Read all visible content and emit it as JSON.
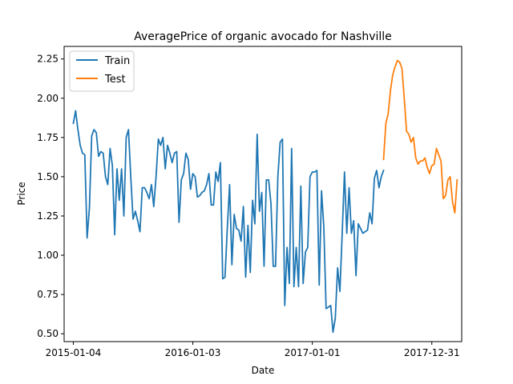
{
  "chart_data": {
    "type": "line",
    "title": "AveragePrice of organic avocado for Nashville",
    "xlabel": "Date",
    "ylabel": "Price",
    "x_ticks": [
      "2015-01-04",
      "2016-01-03",
      "2017-01-01",
      "2017-12-31"
    ],
    "y_ticks": [
      "0.50",
      "0.75",
      "1.00",
      "1.25",
      "1.50",
      "1.75",
      "2.00",
      "2.25"
    ],
    "xlim": [
      "2014-12-07",
      "2018-04-01"
    ],
    "ylim": [
      0.45,
      2.33
    ],
    "legend_position": "top-left",
    "grid": false,
    "series": [
      {
        "name": "Train",
        "color": "#1f77b4",
        "points": [
          [
            "2015-01-04",
            1.84
          ],
          [
            "2015-01-11",
            1.92
          ],
          [
            "2015-01-18",
            1.8
          ],
          [
            "2015-01-25",
            1.7
          ],
          [
            "2015-02-01",
            1.65
          ],
          [
            "2015-02-08",
            1.64
          ],
          [
            "2015-02-15",
            1.11
          ],
          [
            "2015-02-22",
            1.3
          ],
          [
            "2015-03-01",
            1.76
          ],
          [
            "2015-03-08",
            1.8
          ],
          [
            "2015-03-15",
            1.78
          ],
          [
            "2015-03-22",
            1.63
          ],
          [
            "2015-03-29",
            1.66
          ],
          [
            "2015-04-05",
            1.65
          ],
          [
            "2015-04-12",
            1.5
          ],
          [
            "2015-04-19",
            1.45
          ],
          [
            "2015-04-26",
            1.68
          ],
          [
            "2015-05-03",
            1.57
          ],
          [
            "2015-05-10",
            1.13
          ],
          [
            "2015-05-17",
            1.55
          ],
          [
            "2015-05-24",
            1.35
          ],
          [
            "2015-05-31",
            1.55
          ],
          [
            "2015-06-07",
            1.25
          ],
          [
            "2015-06-14",
            1.75
          ],
          [
            "2015-06-21",
            1.8
          ],
          [
            "2015-06-28",
            1.5
          ],
          [
            "2015-07-05",
            1.23
          ],
          [
            "2015-07-12",
            1.28
          ],
          [
            "2015-07-19",
            1.22
          ],
          [
            "2015-07-26",
            1.15
          ],
          [
            "2015-08-02",
            1.43
          ],
          [
            "2015-08-09",
            1.43
          ],
          [
            "2015-08-16",
            1.4
          ],
          [
            "2015-08-23",
            1.36
          ],
          [
            "2015-08-30",
            1.45
          ],
          [
            "2015-09-06",
            1.31
          ],
          [
            "2015-09-13",
            1.5
          ],
          [
            "2015-09-20",
            1.74
          ],
          [
            "2015-09-27",
            1.7
          ],
          [
            "2015-10-04",
            1.75
          ],
          [
            "2015-10-11",
            1.55
          ],
          [
            "2015-10-18",
            1.7
          ],
          [
            "2015-10-25",
            1.65
          ],
          [
            "2015-11-01",
            1.59
          ],
          [
            "2015-11-08",
            1.65
          ],
          [
            "2015-11-15",
            1.66
          ],
          [
            "2015-11-22",
            1.21
          ],
          [
            "2015-11-29",
            1.48
          ],
          [
            "2015-12-06",
            1.52
          ],
          [
            "2015-12-13",
            1.65
          ],
          [
            "2015-12-20",
            1.61
          ],
          [
            "2015-12-27",
            1.42
          ],
          [
            "2016-01-03",
            1.52
          ],
          [
            "2016-01-10",
            1.5
          ],
          [
            "2016-01-17",
            1.37
          ],
          [
            "2016-01-24",
            1.38
          ],
          [
            "2016-01-31",
            1.4
          ],
          [
            "2016-02-07",
            1.41
          ],
          [
            "2016-02-14",
            1.45
          ],
          [
            "2016-02-21",
            1.52
          ],
          [
            "2016-02-28",
            1.32
          ],
          [
            "2016-03-06",
            1.32
          ],
          [
            "2016-03-13",
            1.53
          ],
          [
            "2016-03-20",
            1.47
          ],
          [
            "2016-03-27",
            1.59
          ],
          [
            "2016-04-03",
            0.85
          ],
          [
            "2016-04-10",
            0.86
          ],
          [
            "2016-04-17",
            1.17
          ],
          [
            "2016-04-24",
            1.45
          ],
          [
            "2016-05-01",
            0.94
          ],
          [
            "2016-05-08",
            1.26
          ],
          [
            "2016-05-15",
            1.17
          ],
          [
            "2016-05-22",
            1.16
          ],
          [
            "2016-05-29",
            1.09
          ],
          [
            "2016-06-05",
            1.31
          ],
          [
            "2016-06-12",
            0.86
          ],
          [
            "2016-06-19",
            1.19
          ],
          [
            "2016-06-26",
            0.89
          ],
          [
            "2016-07-03",
            1.35
          ],
          [
            "2016-07-10",
            1.2
          ],
          [
            "2016-07-17",
            1.77
          ],
          [
            "2016-07-24",
            1.28
          ],
          [
            "2016-07-31",
            1.4
          ],
          [
            "2016-08-07",
            0.93
          ],
          [
            "2016-08-14",
            1.48
          ],
          [
            "2016-08-21",
            1.48
          ],
          [
            "2016-08-28",
            1.33
          ],
          [
            "2016-09-04",
            0.93
          ],
          [
            "2016-09-11",
            0.93
          ],
          [
            "2016-09-18",
            1.5
          ],
          [
            "2016-09-25",
            1.72
          ],
          [
            "2016-10-02",
            1.74
          ],
          [
            "2016-10-09",
            0.68
          ],
          [
            "2016-10-16",
            1.05
          ],
          [
            "2016-10-23",
            0.82
          ],
          [
            "2016-10-30",
            1.68
          ],
          [
            "2016-11-06",
            0.8
          ],
          [
            "2016-11-13",
            1.05
          ],
          [
            "2016-11-20",
            0.8
          ],
          [
            "2016-11-27",
            1.44
          ],
          [
            "2016-12-04",
            0.82
          ],
          [
            "2016-12-11",
            1.02
          ],
          [
            "2016-12-18",
            1.05
          ],
          [
            "2016-12-25",
            1.5
          ],
          [
            "2017-01-01",
            1.53
          ],
          [
            "2017-01-08",
            1.53
          ],
          [
            "2017-01-15",
            1.54
          ],
          [
            "2017-01-22",
            0.81
          ],
          [
            "2017-01-29",
            1.41
          ],
          [
            "2017-02-05",
            1.18
          ],
          [
            "2017-02-12",
            0.66
          ],
          [
            "2017-02-19",
            0.67
          ],
          [
            "2017-02-26",
            0.68
          ],
          [
            "2017-03-05",
            0.51
          ],
          [
            "2017-03-12",
            0.6
          ],
          [
            "2017-03-19",
            0.92
          ],
          [
            "2017-03-26",
            0.77
          ],
          [
            "2017-04-02",
            1.14
          ],
          [
            "2017-04-09",
            1.53
          ],
          [
            "2017-04-16",
            1.14
          ],
          [
            "2017-04-23",
            1.43
          ],
          [
            "2017-04-30",
            1.14
          ],
          [
            "2017-05-07",
            1.22
          ],
          [
            "2017-05-14",
            0.87
          ],
          [
            "2017-05-21",
            1.2
          ],
          [
            "2017-05-28",
            1.17
          ],
          [
            "2017-06-04",
            1.14
          ],
          [
            "2017-06-11",
            1.15
          ],
          [
            "2017-06-18",
            1.16
          ],
          [
            "2017-06-25",
            1.27
          ],
          [
            "2017-07-02",
            1.2
          ],
          [
            "2017-07-09",
            1.49
          ],
          [
            "2017-07-16",
            1.54
          ],
          [
            "2017-07-23",
            1.43
          ],
          [
            "2017-07-30",
            1.5
          ],
          [
            "2017-08-06",
            1.54
          ]
        ]
      },
      {
        "name": "Test",
        "color": "#ff7f0e",
        "points": [
          [
            "2017-08-06",
            1.61
          ],
          [
            "2017-08-13",
            1.84
          ],
          [
            "2017-08-20",
            1.9
          ],
          [
            "2017-08-27",
            2.05
          ],
          [
            "2017-09-03",
            2.15
          ],
          [
            "2017-09-10",
            2.2
          ],
          [
            "2017-09-17",
            2.24
          ],
          [
            "2017-09-24",
            2.23
          ],
          [
            "2017-10-01",
            2.19
          ],
          [
            "2017-10-08",
            2.0
          ],
          [
            "2017-10-15",
            1.79
          ],
          [
            "2017-10-22",
            1.77
          ],
          [
            "2017-10-29",
            1.72
          ],
          [
            "2017-11-05",
            1.75
          ],
          [
            "2017-11-12",
            1.62
          ],
          [
            "2017-11-19",
            1.58
          ],
          [
            "2017-11-26",
            1.6
          ],
          [
            "2017-12-03",
            1.6
          ],
          [
            "2017-12-10",
            1.62
          ],
          [
            "2017-12-17",
            1.56
          ],
          [
            "2017-12-24",
            1.52
          ],
          [
            "2017-12-31",
            1.57
          ],
          [
            "2018-01-07",
            1.58
          ],
          [
            "2018-01-14",
            1.68
          ],
          [
            "2018-01-21",
            1.64
          ],
          [
            "2018-01-28",
            1.6
          ],
          [
            "2018-02-04",
            1.36
          ],
          [
            "2018-02-11",
            1.38
          ],
          [
            "2018-02-18",
            1.48
          ],
          [
            "2018-02-25",
            1.5
          ],
          [
            "2018-03-04",
            1.34
          ],
          [
            "2018-03-11",
            1.27
          ],
          [
            "2018-03-18",
            1.48
          ]
        ]
      }
    ]
  }
}
